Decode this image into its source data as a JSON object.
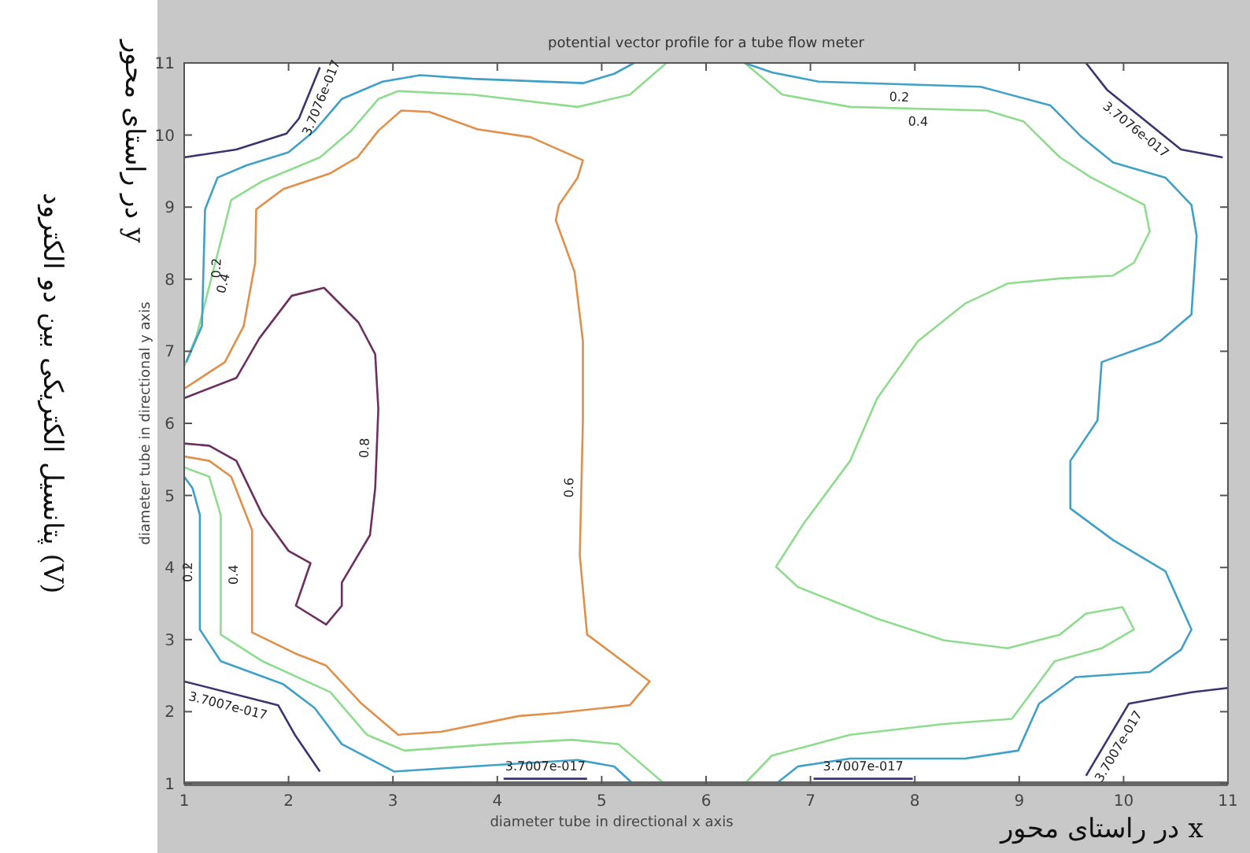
{
  "chart_data": {
    "type": "line",
    "title": "potential vector profile for a tube flow meter",
    "xlabel": "diameter tube in directional x axis",
    "ylabel": "diameter tube in directional y axis",
    "annotations": [
      "در راستای محور x",
      "در راستای محور y",
      "پتانسیل الکتریکی بین دو الکترود (V)"
    ],
    "xlim": [
      1,
      11
    ],
    "ylim": [
      1,
      11
    ],
    "xticks": [
      1,
      2,
      3,
      4,
      5,
      6,
      7,
      8,
      9,
      10,
      11
    ],
    "yticks": [
      1,
      2,
      3,
      4,
      5,
      6,
      7,
      8,
      9,
      10,
      11
    ],
    "series": [
      {
        "name": "0.8",
        "color": "#6b3060",
        "x": [
          1.0,
          1.5,
          1.72,
          2.03,
          2.34,
          2.67,
          2.83,
          2.86,
          2.83,
          2.78,
          2.51,
          2.51,
          2.36,
          2.07,
          2.21,
          2.0,
          1.75,
          1.5,
          1.24,
          1.0
        ],
        "values": [
          6.35,
          6.63,
          7.18,
          7.77,
          7.88,
          7.4,
          6.96,
          6.2,
          5.1,
          4.45,
          3.79,
          3.47,
          3.21,
          3.47,
          4.06,
          4.23,
          4.73,
          5.48,
          5.69,
          5.72
        ]
      },
      {
        "name": "0.6",
        "color": "#e0904a",
        "x": [
          1.0,
          1.39,
          1.57,
          1.68,
          1.69,
          1.95,
          2.4,
          2.66,
          2.86,
          3.08,
          3.35,
          3.81,
          4.32,
          4.82,
          4.77,
          4.59,
          4.56,
          4.74,
          4.82,
          4.82,
          4.79,
          4.86,
          5.46,
          5.27,
          4.56,
          4.21,
          3.46,
          3.05,
          2.7,
          2.36,
          2.06,
          1.65,
          1.65,
          1.65,
          1.45,
          1.24,
          1.0
        ],
        "values": [
          6.48,
          6.85,
          7.35,
          8.23,
          8.97,
          9.25,
          9.47,
          9.69,
          10.06,
          10.34,
          10.32,
          10.08,
          9.97,
          9.65,
          9.41,
          9.03,
          8.82,
          8.1,
          7.14,
          6.04,
          4.17,
          3.07,
          2.42,
          2.09,
          1.98,
          1.94,
          1.72,
          1.68,
          2.11,
          2.64,
          2.81,
          3.1,
          3.86,
          4.52,
          5.26,
          5.48,
          5.54
        ]
      },
      {
        "name": "0.4",
        "color": "#8fdc8f",
        "x": [
          1.0,
          1.12,
          1.39,
          1.45,
          1.75,
          2.3,
          2.6,
          2.86,
          3.05,
          3.76,
          4.77,
          5.27,
          5.62
        ],
        "values": [
          6.79,
          7.22,
          8.75,
          9.1,
          9.36,
          9.69,
          10.06,
          10.5,
          10.61,
          10.56,
          10.39,
          10.56,
          11.0
        ]
      },
      {
        "name": "0.4",
        "color": "#8fdc8f",
        "x": [
          6.37,
          6.73,
          7.38,
          8.69,
          9.04,
          9.39,
          9.69,
          10.2,
          10.25,
          10.1,
          9.9,
          9.39,
          8.89,
          8.48,
          8.03,
          7.64,
          7.38,
          6.93,
          6.67,
          6.88,
          7.64,
          8.28,
          8.89,
          9.39,
          9.64,
          9.99,
          10.1,
          9.79,
          9.34,
          8.93,
          8.28,
          7.38,
          6.63,
          6.37
        ],
        "values": [
          11.0,
          10.56,
          10.39,
          10.34,
          10.19,
          9.69,
          9.41,
          9.03,
          8.66,
          8.23,
          8.05,
          8.01,
          7.94,
          7.66,
          7.14,
          6.35,
          5.48,
          4.6,
          4.01,
          3.73,
          3.29,
          2.99,
          2.88,
          3.07,
          3.36,
          3.45,
          3.14,
          2.88,
          2.7,
          1.9,
          1.83,
          1.68,
          1.39,
          1.0
        ]
      },
      {
        "name": "0.4",
        "color": "#8fdc8f",
        "x": [
          5.6,
          5.16,
          4.71,
          3.96,
          3.11,
          2.75,
          2.4,
          1.75,
          1.35,
          1.35,
          1.24,
          1.0
        ],
        "values": [
          1.0,
          1.55,
          1.61,
          1.55,
          1.46,
          1.68,
          2.27,
          2.7,
          3.07,
          4.73,
          5.26,
          5.39
        ]
      },
      {
        "name": "0.2",
        "color": "#3fa0c8",
        "x": [
          1.02,
          1.17,
          1.2,
          1.32,
          1.6,
          2.0,
          2.25,
          2.51,
          2.9,
          3.26,
          3.76,
          4.82,
          5.12,
          5.31
        ],
        "values": [
          6.85,
          7.35,
          8.97,
          9.41,
          9.58,
          9.76,
          10.06,
          10.5,
          10.74,
          10.83,
          10.78,
          10.72,
          10.85,
          11.0
        ]
      },
      {
        "name": "0.2",
        "color": "#3fa0c8",
        "x": [
          6.37,
          6.63,
          7.08,
          8.63,
          9.3,
          9.6,
          9.9,
          10.4,
          10.65,
          10.7,
          10.65,
          10.35,
          9.79,
          9.75,
          9.49,
          9.49,
          9.9,
          10.4,
          10.65,
          10.55,
          10.25,
          9.54,
          9.19,
          8.99,
          8.48,
          7.38,
          6.88,
          6.67
        ],
        "values": [
          11.0,
          10.87,
          10.74,
          10.67,
          10.41,
          9.97,
          9.62,
          9.41,
          9.03,
          8.6,
          7.51,
          7.14,
          6.85,
          6.04,
          5.48,
          4.82,
          4.38,
          3.95,
          3.14,
          2.86,
          2.55,
          2.48,
          2.11,
          1.46,
          1.35,
          1.35,
          1.24,
          1.0
        ]
      },
      {
        "name": "0.2",
        "color": "#3fa0c8",
        "x": [
          5.3,
          5.12,
          4.77,
          3.76,
          3.01,
          2.51,
          2.25,
          1.95,
          1.35,
          1.15,
          1.15,
          1.08,
          1.0
        ],
        "values": [
          1.0,
          1.24,
          1.33,
          1.24,
          1.17,
          1.55,
          2.05,
          2.38,
          2.7,
          3.14,
          4.73,
          5.1,
          5.26
        ]
      },
      {
        "name": "3.7076e-017",
        "color": "#3a3470",
        "x": [
          1.0,
          1.5,
          1.98,
          2.1,
          2.3
        ],
        "values": [
          9.69,
          9.8,
          10.02,
          10.23,
          10.94
        ]
      },
      {
        "name": "3.7076e-017",
        "color": "#3a3470",
        "x": [
          9.64,
          9.84,
          10.55,
          10.95
        ],
        "values": [
          11.0,
          10.63,
          9.8,
          9.69
        ]
      },
      {
        "name": "3.7007e-017",
        "color": "#3a3470",
        "x": [
          1.0,
          1.9,
          2.06,
          2.3
        ],
        "values": [
          2.42,
          2.09,
          1.68,
          1.17
        ]
      },
      {
        "name": "3.7007e-017",
        "color": "#3a3470",
        "x": [
          9.64,
          10.05,
          10.65,
          11.0
        ],
        "values": [
          1.11,
          2.11,
          2.27,
          2.33
        ]
      },
      {
        "name": "3.7007e-017",
        "color": "#3a3470",
        "x": [
          4.06,
          4.86
        ],
        "values": [
          1.07,
          1.07
        ]
      },
      {
        "name": "3.7007e-017",
        "color": "#3a3470",
        "x": [
          7.03,
          7.98
        ],
        "values": [
          1.07,
          1.07
        ]
      }
    ]
  }
}
